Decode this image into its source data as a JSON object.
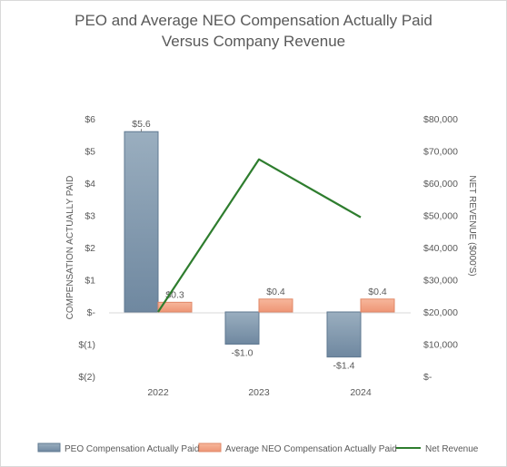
{
  "chart_data": {
    "type": "bar",
    "title_line1": "PEO and Average NEO Compensation Actually Paid",
    "title_line2": "Versus Company Revenue",
    "categories": [
      "2022",
      "2023",
      "2024"
    ],
    "ylabel_left": "COMPENSATION ACTUALLY PAID",
    "ylabel_right": "NET REVENUE ($000'S)",
    "ylim_left": [
      -2,
      6
    ],
    "ylim_right": [
      0,
      80000
    ],
    "yticks_left": [
      {
        "value": 6,
        "label": "$6"
      },
      {
        "value": 5,
        "label": "$5"
      },
      {
        "value": 4,
        "label": "$4"
      },
      {
        "value": 3,
        "label": "$3"
      },
      {
        "value": 2,
        "label": "$2"
      },
      {
        "value": 1,
        "label": "$1"
      },
      {
        "value": 0,
        "label": "$-"
      },
      {
        "value": -1,
        "label": "$(1)"
      },
      {
        "value": -2,
        "label": "$(2)"
      }
    ],
    "yticks_right": [
      {
        "value": 80000,
        "label": "$80,000"
      },
      {
        "value": 70000,
        "label": "$70,000"
      },
      {
        "value": 60000,
        "label": "$60,000"
      },
      {
        "value": 50000,
        "label": "$50,000"
      },
      {
        "value": 40000,
        "label": "$40,000"
      },
      {
        "value": 30000,
        "label": "$30,000"
      },
      {
        "value": 20000,
        "label": "$20,000"
      },
      {
        "value": 10000,
        "label": "$10,000"
      },
      {
        "value": 0,
        "label": "$-"
      }
    ],
    "series": [
      {
        "name": "PEO Compensation Actually Paid",
        "kind": "bar",
        "axis": "left",
        "values": [
          5.6,
          -1.0,
          -1.4
        ],
        "labels": [
          "$5.6",
          "-$1.0",
          "-$1.4"
        ],
        "color": "#7f97ad"
      },
      {
        "name": "Average NEO Compensation Actually Paid",
        "kind": "bar",
        "axis": "left",
        "values": [
          0.3,
          0.4,
          0.4
        ],
        "labels": [
          "$0.3",
          "$0.4",
          "$0.4"
        ],
        "color": "#f4a98a"
      },
      {
        "name": "Net Revenue",
        "kind": "line",
        "axis": "right",
        "values": [
          20000,
          67400,
          49400
        ],
        "color": "#2e7d2e"
      }
    ],
    "legend_position": "bottom",
    "grid": false
  }
}
